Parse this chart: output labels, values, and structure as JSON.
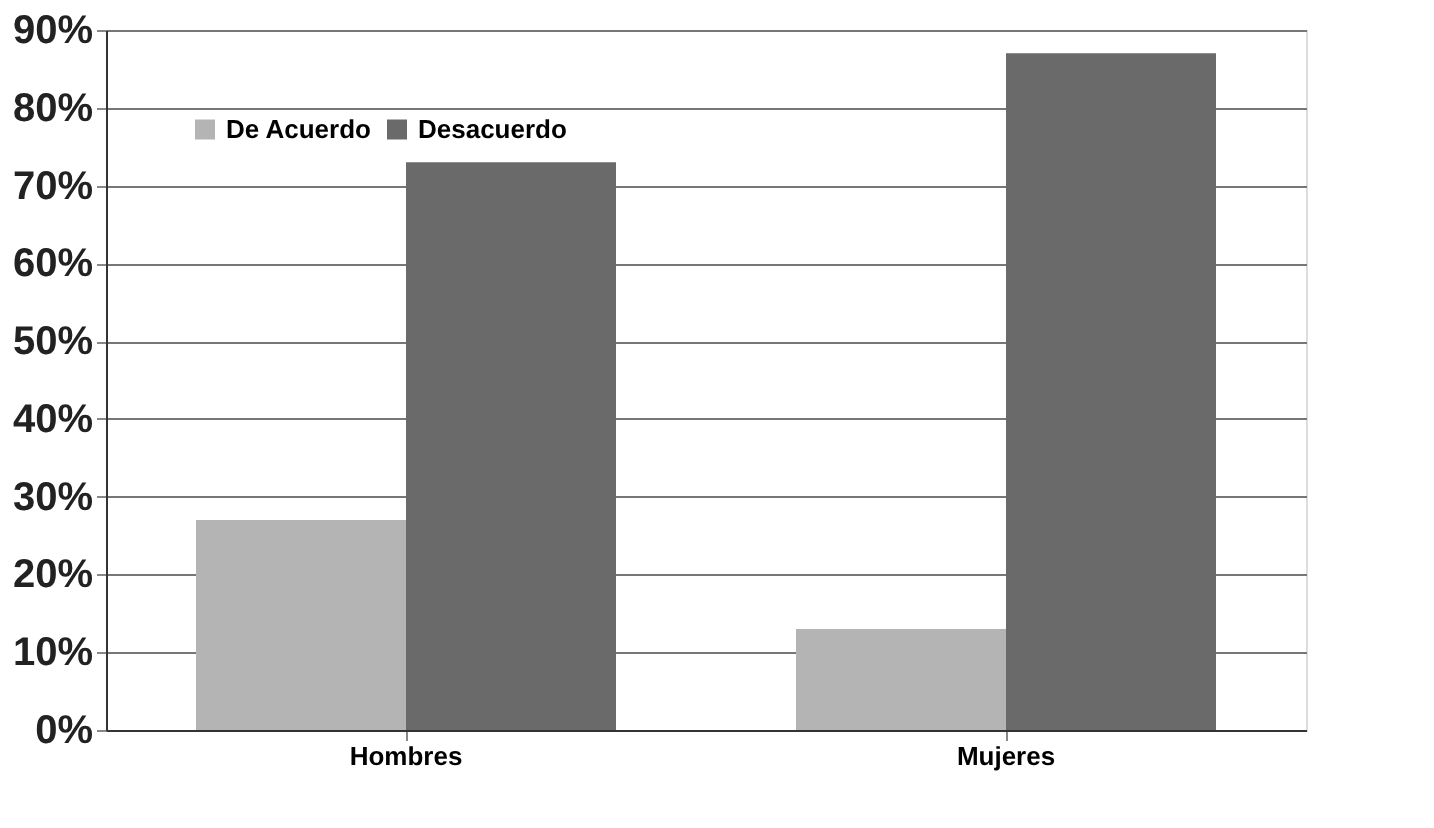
{
  "chart_data": {
    "type": "bar",
    "categories": [
      "Hombres",
      "Mujeres"
    ],
    "series": [
      {
        "name": "De Acuerdo",
        "color": "#b4b4b4",
        "values": [
          27,
          13
        ]
      },
      {
        "name": "Desacuerdo",
        "color": "#6a6a6a",
        "values": [
          73,
          87
        ]
      }
    ],
    "ylim": [
      0,
      90
    ],
    "yticks": [
      {
        "value": 0,
        "label": "0%"
      },
      {
        "value": 10,
        "label": "10%"
      },
      {
        "value": 20,
        "label": "20%"
      },
      {
        "value": 30,
        "label": "30%"
      },
      {
        "value": 40,
        "label": "40%"
      },
      {
        "value": 50,
        "label": "50%"
      },
      {
        "value": 60,
        "label": "60%"
      },
      {
        "value": 70,
        "label": "70%"
      },
      {
        "value": 80,
        "label": "80%"
      },
      {
        "value": 90,
        "label": "90%"
      }
    ],
    "grid": "y",
    "legend": "top left"
  }
}
